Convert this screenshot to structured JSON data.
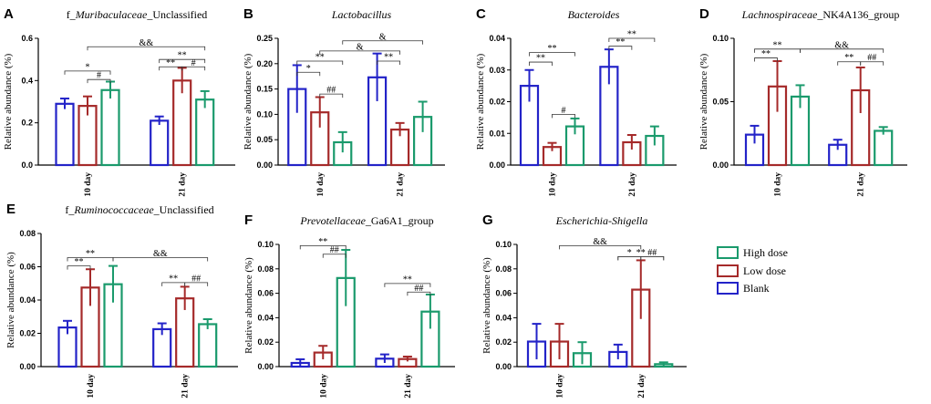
{
  "colors": {
    "high": "#1a9a6c",
    "low": "#a52a2a",
    "blank": "#2323c8"
  },
  "legend": {
    "entries": [
      {
        "label": "High dose",
        "key": "high"
      },
      {
        "label": "Low dose",
        "key": "low"
      },
      {
        "label": "Blank",
        "key": "blank"
      }
    ]
  },
  "chart_data": [
    {
      "panel": "A",
      "type": "bar",
      "title_parts": [
        {
          "t": "f_",
          "it": false
        },
        {
          "t": "Muribaculaceae",
          "it": true
        },
        {
          "t": "_Unclassified",
          "it": false
        }
      ],
      "ylabel": "Relative abundance (%)",
      "ylim": [
        0,
        0.6
      ],
      "yticks": [
        "0.0",
        "0.2",
        "0.4",
        "0.6"
      ],
      "ytick_values": [
        0,
        0.2,
        0.4,
        0.6
      ],
      "categories": [
        "10 day",
        "21 day"
      ],
      "series": [
        {
          "name": "Blank",
          "key": "blank",
          "values": [
            0.29,
            0.21
          ],
          "err": [
            0.025,
            0.02
          ]
        },
        {
          "name": "Low dose",
          "key": "low",
          "values": [
            0.28,
            0.4
          ],
          "err": [
            0.045,
            0.06
          ]
        },
        {
          "name": "High dose",
          "key": "high",
          "values": [
            0.355,
            0.31
          ],
          "err": [
            0.04,
            0.04
          ]
        }
      ],
      "brackets": [
        {
          "from": [
            0,
            0
          ],
          "to": [
            0,
            2
          ],
          "y": 0.445,
          "label": "*"
        },
        {
          "from": [
            0,
            1
          ],
          "to": [
            0,
            2
          ],
          "y": 0.405,
          "label": "#"
        },
        {
          "from": [
            0,
            1
          ],
          "to": [
            1,
            2
          ],
          "y": 0.56,
          "label": "&&"
        },
        {
          "from": [
            1,
            0
          ],
          "to": [
            1,
            2
          ],
          "y": 0.5,
          "label": "**"
        },
        {
          "from": [
            1,
            0
          ],
          "to": [
            1,
            1
          ],
          "y": 0.465,
          "label": "**"
        },
        {
          "from": [
            1,
            1
          ],
          "to": [
            1,
            2
          ],
          "y": 0.465,
          "label": "#"
        }
      ]
    },
    {
      "panel": "B",
      "type": "bar",
      "title_parts": [
        {
          "t": "Lactobacillus",
          "it": true
        }
      ],
      "ylabel": "Relative abundance (%)",
      "ylim": [
        0,
        0.25
      ],
      "yticks": [
        "0.00",
        "0.05",
        "0.10",
        "0.15",
        "0.20",
        "0.25"
      ],
      "ytick_values": [
        0,
        0.05,
        0.1,
        0.15,
        0.2,
        0.25
      ],
      "categories": [
        "10 day",
        "21 day"
      ],
      "series": [
        {
          "name": "Blank",
          "key": "blank",
          "values": [
            0.15,
            0.173
          ],
          "err": [
            0.047,
            0.047
          ]
        },
        {
          "name": "Low dose",
          "key": "low",
          "values": [
            0.104,
            0.07
          ],
          "err": [
            0.03,
            0.013
          ]
        },
        {
          "name": "High dose",
          "key": "high",
          "values": [
            0.045,
            0.095
          ],
          "err": [
            0.02,
            0.03
          ]
        }
      ],
      "brackets": [
        {
          "from": [
            0,
            0
          ],
          "to": [
            0,
            1
          ],
          "y": 0.183,
          "label": "*"
        },
        {
          "from": [
            0,
            0
          ],
          "to": [
            0,
            2
          ],
          "y": 0.205,
          "label": "**"
        },
        {
          "from": [
            0,
            1
          ],
          "to": [
            0,
            2
          ],
          "y": 0.14,
          "label": "##"
        },
        {
          "from": [
            0,
            1
          ],
          "to": [
            1,
            1
          ],
          "y": 0.225,
          "label": "&"
        },
        {
          "from": [
            0,
            2
          ],
          "to": [
            1,
            2
          ],
          "y": 0.245,
          "label": "&"
        },
        {
          "from": [
            1,
            0
          ],
          "to": [
            1,
            1
          ],
          "y": 0.205,
          "label": "**"
        }
      ]
    },
    {
      "panel": "C",
      "type": "bar",
      "title_parts": [
        {
          "t": "Bacteroides",
          "it": true
        }
      ],
      "ylabel": "Relative abundance (%)",
      "ylim": [
        0,
        0.04
      ],
      "yticks": [
        "0.00",
        "0.01",
        "0.02",
        "0.03",
        "0.04"
      ],
      "ytick_values": [
        0,
        0.01,
        0.02,
        0.03,
        0.04
      ],
      "categories": [
        "10 day",
        "21 day"
      ],
      "series": [
        {
          "name": "Blank",
          "key": "blank",
          "values": [
            0.025,
            0.031
          ],
          "err": [
            0.005,
            0.0055
          ]
        },
        {
          "name": "Low dose",
          "key": "low",
          "values": [
            0.0057,
            0.0072
          ],
          "err": [
            0.0013,
            0.0023
          ]
        },
        {
          "name": "High dose",
          "key": "high",
          "values": [
            0.0122,
            0.0092
          ],
          "err": [
            0.0025,
            0.003
          ]
        }
      ],
      "brackets": [
        {
          "from": [
            0,
            0
          ],
          "to": [
            0,
            1
          ],
          "y": 0.0325,
          "label": "**"
        },
        {
          "from": [
            0,
            0
          ],
          "to": [
            0,
            2
          ],
          "y": 0.0355,
          "label": "**"
        },
        {
          "from": [
            0,
            1
          ],
          "to": [
            0,
            2
          ],
          "y": 0.016,
          "label": "#"
        },
        {
          "from": [
            1,
            0
          ],
          "to": [
            1,
            1
          ],
          "y": 0.0375,
          "label": "**"
        },
        {
          "from": [
            1,
            0
          ],
          "to": [
            1,
            2
          ],
          "y": 0.04,
          "label": "**"
        }
      ]
    },
    {
      "panel": "D",
      "type": "bar",
      "title_parts": [
        {
          "t": "Lachnospiraceae",
          "it": true
        },
        {
          "t": "_NK4A136_group",
          "it": false
        }
      ],
      "ylabel": "Relative abundance (%)",
      "ylim": [
        0,
        0.1
      ],
      "yticks": [
        "0.00",
        "0.05",
        "0.10"
      ],
      "ytick_values": [
        0,
        0.05,
        0.1
      ],
      "categories": [
        "10 day",
        "21 day"
      ],
      "series": [
        {
          "name": "Blank",
          "key": "blank",
          "values": [
            0.024,
            0.016
          ],
          "err": [
            0.007,
            0.004
          ]
        },
        {
          "name": "Low dose",
          "key": "low",
          "values": [
            0.062,
            0.059
          ],
          "err": [
            0.02,
            0.018
          ]
        },
        {
          "name": "High dose",
          "key": "high",
          "values": [
            0.054,
            0.027
          ],
          "err": [
            0.009,
            0.003
          ]
        }
      ],
      "brackets": [
        {
          "from": [
            0,
            0
          ],
          "to": [
            0,
            1
          ],
          "y": 0.0845,
          "label": "**"
        },
        {
          "from": [
            0,
            0
          ],
          "to": [
            0,
            2
          ],
          "y": 0.0915,
          "label": "**"
        },
        {
          "from": [
            0,
            2
          ],
          "to": [
            1,
            2
          ],
          "y": 0.0915,
          "label": "&&"
        },
        {
          "from": [
            1,
            0
          ],
          "to": [
            1,
            1
          ],
          "y": 0.0815,
          "label": "**"
        },
        {
          "from": [
            1,
            1
          ],
          "to": [
            1,
            2
          ],
          "y": 0.0815,
          "label": "##"
        }
      ]
    },
    {
      "panel": "E",
      "type": "bar",
      "title_parts": [
        {
          "t": "f_",
          "it": false
        },
        {
          "t": "Ruminococcaceae",
          "it": true
        },
        {
          "t": "_Unclassified",
          "it": false
        }
      ],
      "ylabel": "Relative abundance (%)",
      "ylim": [
        0,
        0.08
      ],
      "yticks": [
        "0.00",
        "0.02",
        "0.04",
        "0.06",
        "0.08"
      ],
      "ytick_values": [
        0,
        0.02,
        0.04,
        0.06,
        0.08
      ],
      "categories": [
        "10 day",
        "21 day"
      ],
      "series": [
        {
          "name": "Blank",
          "key": "blank",
          "values": [
            0.0235,
            0.0225
          ],
          "err": [
            0.004,
            0.0035
          ]
        },
        {
          "name": "Low dose",
          "key": "low",
          "values": [
            0.0475,
            0.041
          ],
          "err": [
            0.011,
            0.007
          ]
        },
        {
          "name": "High dose",
          "key": "high",
          "values": [
            0.0495,
            0.0255
          ],
          "err": [
            0.011,
            0.003
          ]
        }
      ],
      "brackets": [
        {
          "from": [
            0,
            0
          ],
          "to": [
            0,
            1
          ],
          "y": 0.0605,
          "label": "**"
        },
        {
          "from": [
            0,
            0
          ],
          "to": [
            0,
            2
          ],
          "y": 0.0655,
          "label": "**"
        },
        {
          "from": [
            0,
            2
          ],
          "to": [
            1,
            2
          ],
          "y": 0.0655,
          "label": "&&"
        },
        {
          "from": [
            1,
            0
          ],
          "to": [
            1,
            1
          ],
          "y": 0.0505,
          "label": "**"
        },
        {
          "from": [
            1,
            1
          ],
          "to": [
            1,
            2
          ],
          "y": 0.0505,
          "label": "##"
        }
      ]
    },
    {
      "panel": "F",
      "type": "bar",
      "title_parts": [
        {
          "t": "Prevotellaceae",
          "it": true
        },
        {
          "t": "_Ga6A1_group",
          "it": false
        }
      ],
      "ylabel": "Relative abundance (%)",
      "ylim": [
        0,
        0.1
      ],
      "yticks": [
        "0.00",
        "0.02",
        "0.04",
        "0.06",
        "0.08",
        "0.10"
      ],
      "ytick_values": [
        0,
        0.02,
        0.04,
        0.06,
        0.08,
        0.1
      ],
      "categories": [
        "10 day",
        "21 day"
      ],
      "series": [
        {
          "name": "Blank",
          "key": "blank",
          "values": [
            0.003,
            0.0065
          ],
          "err": [
            0.003,
            0.0035
          ]
        },
        {
          "name": "Low dose",
          "key": "low",
          "values": [
            0.0115,
            0.0062
          ],
          "err": [
            0.0055,
            0.002
          ]
        },
        {
          "name": "High dose",
          "key": "high",
          "values": [
            0.0725,
            0.045
          ],
          "err": [
            0.023,
            0.014
          ]
        }
      ],
      "brackets": [
        {
          "from": [
            0,
            0
          ],
          "to": [
            0,
            2
          ],
          "y": 0.099,
          "label": "**"
        },
        {
          "from": [
            0,
            1
          ],
          "to": [
            0,
            2
          ],
          "y": 0.092,
          "label": "##"
        },
        {
          "from": [
            1,
            0
          ],
          "to": [
            1,
            2
          ],
          "y": 0.068,
          "label": "**"
        },
        {
          "from": [
            1,
            1
          ],
          "to": [
            1,
            2
          ],
          "y": 0.061,
          "label": "##"
        }
      ]
    },
    {
      "panel": "G",
      "type": "bar",
      "title_parts": [
        {
          "t": "Escherichia-Shigella",
          "it": true
        }
      ],
      "ylabel": "Relative abundance (%)",
      "ylim": [
        0,
        0.1
      ],
      "yticks": [
        "0.00",
        "0.02",
        "0.04",
        "0.06",
        "0.08",
        "0.10"
      ],
      "ytick_values": [
        0,
        0.02,
        0.04,
        0.06,
        0.08,
        0.1
      ],
      "categories": [
        "10 day",
        "21 day"
      ],
      "series": [
        {
          "name": "Blank",
          "key": "blank",
          "values": [
            0.0205,
            0.012
          ],
          "err": [
            0.0145,
            0.006
          ]
        },
        {
          "name": "Low dose",
          "key": "low",
          "values": [
            0.0205,
            0.063
          ],
          "err": [
            0.0145,
            0.024
          ]
        },
        {
          "name": "High dose",
          "key": "high",
          "values": [
            0.011,
            0.002
          ],
          "err": [
            0.009,
            0.0015
          ]
        }
      ],
      "brackets": [
        {
          "from": [
            0,
            1
          ],
          "to": [
            1,
            1
          ],
          "y": 0.099,
          "label": "&&"
        },
        {
          "from": [
            1,
            0
          ],
          "to": [
            1,
            1
          ],
          "y": 0.09,
          "label": "*"
        },
        {
          "from": [
            1,
            0
          ],
          "to": [
            1,
            2
          ],
          "y": 0.09,
          "label": "**"
        },
        {
          "from": [
            1,
            1
          ],
          "to": [
            1,
            2
          ],
          "y": 0.09,
          "label": "##"
        }
      ]
    }
  ]
}
